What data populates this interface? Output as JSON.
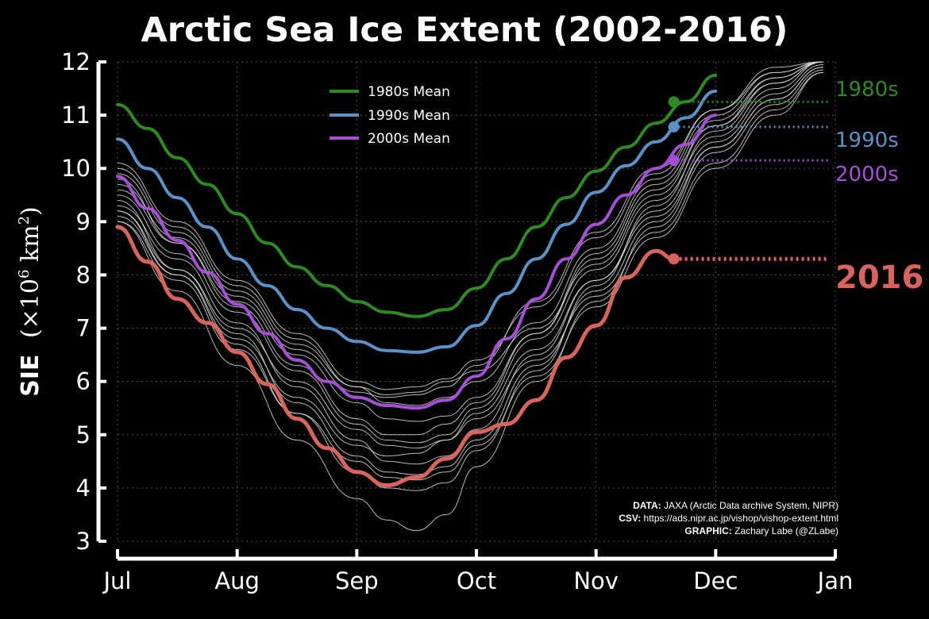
{
  "chart_data": {
    "type": "line",
    "title": "Arctic Sea Ice Extent (2002-2016)",
    "ylabel_main": "SIE",
    "ylabel_units": "(×10",
    "ylabel_exp": "6",
    "ylabel_units_tail": " km",
    "ylabel_exp2": "2",
    "ylabel_close": ")",
    "ylim": [
      3,
      12
    ],
    "yticks": [
      "3",
      "4",
      "5",
      "6",
      "7",
      "8",
      "9",
      "10",
      "11",
      "12"
    ],
    "xlim": [
      0,
      6
    ],
    "xtick_labels": [
      "Jul",
      "Aug",
      "Sep",
      "Oct",
      "Nov",
      "Dec",
      "Jan"
    ],
    "grid": true,
    "legend": {
      "position": "top-left",
      "entries": [
        {
          "name": "1980s Mean",
          "color": "#2e8b22"
        },
        {
          "name": "1990s Mean",
          "color": "#5b92c8"
        },
        {
          "name": "2000s Mean",
          "color": "#a64ed6"
        }
      ]
    },
    "series": [
      {
        "name": "1980s Mean",
        "label": "1980s",
        "color": "#2e8b22",
        "x": [
          0,
          0.25,
          0.5,
          0.75,
          1,
          1.25,
          1.5,
          1.75,
          2,
          2.25,
          2.5,
          2.75,
          3,
          3.25,
          3.5,
          3.75,
          4,
          4.25,
          4.5,
          4.75,
          5
        ],
        "y": [
          11.2,
          10.75,
          10.2,
          9.7,
          9.15,
          8.6,
          8.15,
          7.8,
          7.5,
          7.3,
          7.22,
          7.35,
          7.75,
          8.3,
          8.9,
          9.45,
          9.95,
          10.4,
          10.85,
          11.25,
          11.75
        ],
        "end": {
          "x": 4.65,
          "y": 11.25
        }
      },
      {
        "name": "1990s Mean",
        "label": "1990s",
        "color": "#5b92c8",
        "x": [
          0,
          0.25,
          0.5,
          0.75,
          1,
          1.25,
          1.5,
          1.75,
          2,
          2.25,
          2.5,
          2.75,
          3,
          3.25,
          3.5,
          3.75,
          4,
          4.25,
          4.5,
          4.75,
          5
        ],
        "y": [
          10.55,
          10.0,
          9.45,
          8.9,
          8.3,
          7.8,
          7.35,
          7.0,
          6.75,
          6.58,
          6.55,
          6.65,
          7.05,
          7.65,
          8.3,
          8.95,
          9.55,
          10.05,
          10.5,
          10.95,
          11.45
        ],
        "end": {
          "x": 4.65,
          "y": 10.78
        }
      },
      {
        "name": "2000s Mean",
        "label": "2000s",
        "color": "#a64ed6",
        "x": [
          0,
          0.25,
          0.5,
          0.75,
          1,
          1.25,
          1.5,
          1.75,
          2,
          2.25,
          2.5,
          2.75,
          3,
          3.25,
          3.5,
          3.75,
          4,
          4.25,
          4.5,
          4.75,
          5
        ],
        "y": [
          9.85,
          9.25,
          8.65,
          8.05,
          7.45,
          6.9,
          6.4,
          6.0,
          5.7,
          5.55,
          5.5,
          5.65,
          6.1,
          6.8,
          7.55,
          8.3,
          8.95,
          9.5,
          10.0,
          10.45,
          11.0
        ],
        "end": {
          "x": 4.65,
          "y": 10.15
        }
      },
      {
        "name": "2016",
        "label": "2016",
        "color": "#d9645e",
        "x": [
          0,
          0.25,
          0.5,
          0.75,
          1,
          1.25,
          1.5,
          1.75,
          2,
          2.25,
          2.5,
          2.75,
          3,
          3.25,
          3.5,
          3.75,
          4,
          4.25,
          4.5,
          4.65
        ],
        "y": [
          8.9,
          8.25,
          7.55,
          7.1,
          6.55,
          5.95,
          5.3,
          4.75,
          4.3,
          4.05,
          4.2,
          4.55,
          5.05,
          5.2,
          5.65,
          6.45,
          7.05,
          7.95,
          8.45,
          8.3
        ],
        "end": {
          "x": 4.65,
          "y": 8.3
        }
      }
    ],
    "individual_years_color": "#d8d8d8",
    "individual_years": [
      {
        "x": [
          0,
          0.5,
          1,
          1.5,
          2,
          2.25,
          2.5,
          2.75,
          3,
          3.5,
          4,
          4.5,
          5,
          5.5,
          5.9
        ],
        "y": [
          9.6,
          8.6,
          7.5,
          6.5,
          5.6,
          5.3,
          5.25,
          5.35,
          5.7,
          6.9,
          8.3,
          9.6,
          10.8,
          11.6,
          12
        ]
      },
      {
        "x": [
          0,
          0.5,
          1,
          1.5,
          2,
          2.25,
          2.5,
          2.75,
          3,
          3.5,
          4,
          4.5,
          5,
          5.5,
          5.9
        ],
        "y": [
          9.5,
          8.4,
          7.3,
          6.2,
          5.2,
          4.9,
          4.85,
          5.0,
          5.5,
          6.8,
          8.1,
          9.4,
          10.6,
          11.5,
          12
        ]
      },
      {
        "x": [
          0,
          0.5,
          1,
          1.5,
          2,
          2.25,
          2.5,
          2.75,
          3,
          3.5,
          4,
          4.5,
          5,
          5.5,
          5.9
        ],
        "y": [
          9.3,
          8.3,
          7.1,
          5.9,
          4.9,
          4.5,
          4.45,
          4.6,
          5.1,
          6.5,
          7.9,
          9.2,
          10.5,
          11.4,
          11.95
        ]
      },
      {
        "x": [
          0,
          0.5,
          1,
          1.5,
          2,
          2.25,
          2.5,
          2.75,
          3,
          3.5,
          4,
          4.5,
          5,
          5.5,
          5.9
        ],
        "y": [
          9.4,
          8.1,
          6.9,
          5.6,
          4.6,
          4.3,
          4.25,
          4.4,
          4.9,
          6.3,
          7.7,
          9.0,
          10.4,
          11.3,
          11.9
        ]
      },
      {
        "x": [
          0,
          0.5,
          1,
          1.5,
          2,
          2.25,
          2.5,
          2.75,
          3,
          3.5,
          4,
          4.5,
          5,
          5.5,
          5.9
        ],
        "y": [
          9.0,
          7.7,
          6.3,
          4.9,
          3.8,
          3.4,
          3.2,
          3.5,
          4.4,
          6.0,
          7.5,
          8.9,
          10.3,
          11.2,
          11.85
        ]
      },
      {
        "x": [
          0,
          0.5,
          1,
          1.5,
          2,
          2.25,
          2.5,
          2.75,
          3,
          3.5,
          4,
          4.5,
          5,
          5.5,
          5.9
        ],
        "y": [
          9.2,
          8.0,
          6.7,
          5.4,
          4.3,
          4.0,
          3.95,
          4.1,
          4.7,
          6.2,
          7.8,
          9.3,
          10.7,
          11.6,
          12
        ]
      },
      {
        "x": [
          0,
          0.5,
          1,
          1.5,
          2,
          2.25,
          2.5,
          2.75,
          3,
          3.5,
          4,
          4.5,
          5,
          5.5,
          5.9
        ],
        "y": [
          10.0,
          8.9,
          7.8,
          6.8,
          5.9,
          5.6,
          5.55,
          5.7,
          6.0,
          7.1,
          8.5,
          9.8,
          11.0,
          11.8,
          12
        ]
      },
      {
        "x": [
          0,
          0.5,
          1,
          1.5,
          2,
          2.25,
          2.5,
          2.75,
          3,
          3.5,
          4,
          4.5,
          5,
          5.5,
          5.9
        ],
        "y": [
          9.7,
          8.7,
          7.6,
          6.6,
          5.8,
          5.7,
          5.75,
          5.9,
          6.3,
          7.5,
          8.8,
          10.0,
          11.1,
          11.8,
          12
        ]
      },
      {
        "x": [
          0,
          0.5,
          1,
          1.5,
          2,
          2.25,
          2.5,
          2.75,
          3,
          3.5,
          4,
          4.5,
          5,
          5.5,
          5.9
        ],
        "y": [
          9.9,
          8.8,
          7.7,
          6.7,
          5.9,
          5.75,
          5.8,
          6.0,
          6.2,
          7.0,
          8.2,
          9.5,
          10.8,
          11.7,
          12
        ]
      },
      {
        "x": [
          0,
          0.5,
          1,
          1.5,
          2,
          2.25,
          2.5,
          2.75,
          3,
          3.5,
          4,
          4.5,
          5,
          5.5,
          5.9
        ],
        "y": [
          9.1,
          8.0,
          6.8,
          5.7,
          4.8,
          4.6,
          4.65,
          4.9,
          5.4,
          6.6,
          7.9,
          9.1,
          10.4,
          11.3,
          11.9
        ]
      },
      {
        "x": [
          0,
          0.5,
          1,
          1.5,
          2,
          2.25,
          2.5,
          2.75,
          3,
          3.5,
          4,
          4.5,
          5,
          5.5,
          5.9
        ],
        "y": [
          9.2,
          8.1,
          7.0,
          6.0,
          5.1,
          4.8,
          4.75,
          4.9,
          5.3,
          6.4,
          7.6,
          8.8,
          10.1,
          11.1,
          11.8
        ]
      },
      {
        "x": [
          0,
          0.5,
          1,
          1.5,
          2,
          2.25,
          2.5,
          2.75,
          3,
          3.5,
          4,
          4.5,
          5,
          5.5,
          5.9
        ],
        "y": [
          9.8,
          8.6,
          7.4,
          6.3,
          5.3,
          5.0,
          5.0,
          5.2,
          5.6,
          6.9,
          8.4,
          9.7,
          10.9,
          11.7,
          12
        ]
      },
      {
        "x": [
          0,
          0.5,
          1,
          1.5,
          2,
          2.25,
          2.5,
          2.75,
          3,
          3.5,
          4,
          4.5,
          5,
          5.5,
          5.9
        ],
        "y": [
          9.0,
          7.9,
          6.6,
          5.4,
          4.5,
          4.2,
          4.15,
          4.3,
          4.8,
          6.1,
          7.4,
          8.7,
          10.0,
          11.0,
          11.8
        ]
      },
      {
        "x": [
          0,
          0.5,
          1,
          1.5,
          2,
          2.25,
          2.5,
          2.75,
          3,
          3.5,
          4,
          4.5,
          5,
          5.5,
          5.9
        ],
        "y": [
          10.1,
          9.0,
          7.9,
          6.9,
          6.0,
          5.85,
          5.9,
          6.05,
          6.4,
          7.4,
          8.7,
          9.9,
          11.1,
          11.9,
          12
        ]
      }
    ],
    "credits": [
      {
        "label": "DATA:",
        "text": " JAXA (Arctic Data archive System, NIPR)"
      },
      {
        "label": "CSV:",
        "text": " https://ads.nipr.ac.jp/vishop/vishop-extent.html"
      },
      {
        "label": "GRAPHIC:",
        "text": " Zachary Labe (@ZLabe)"
      }
    ]
  }
}
